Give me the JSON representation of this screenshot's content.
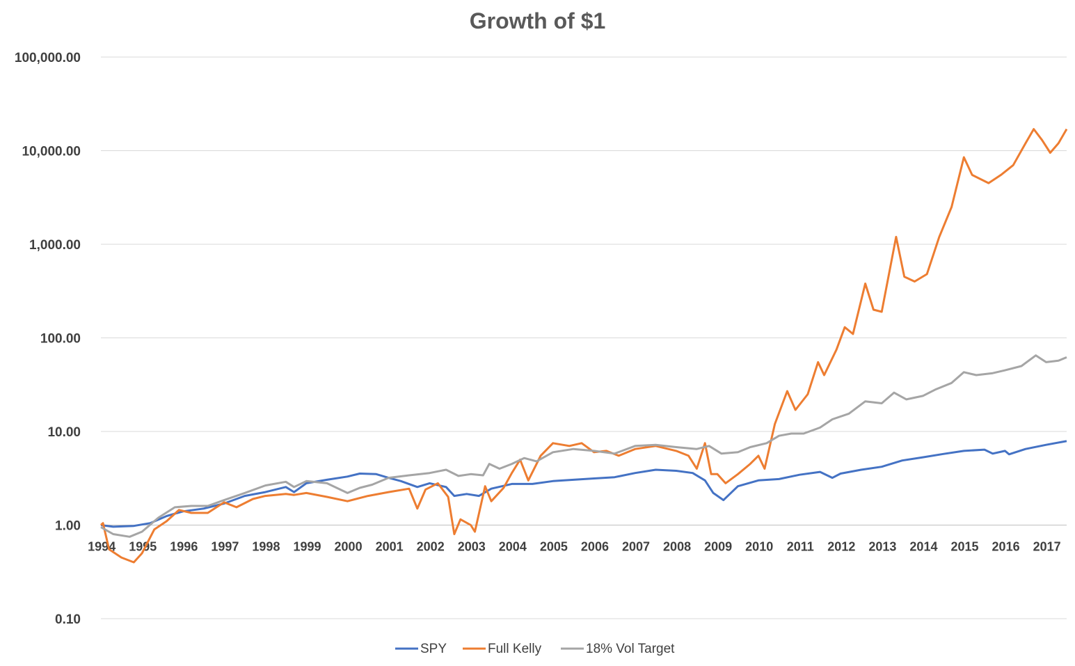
{
  "chart_data": {
    "type": "line",
    "title": "Growth of $1",
    "xlabel": "",
    "ylabel": "",
    "y_scale": "log",
    "ylim": [
      0.1,
      100000
    ],
    "xlim": [
      1994,
      2017.5
    ],
    "y_ticks": [
      {
        "value": 100000,
        "label": "100,000.00"
      },
      {
        "value": 10000,
        "label": "10,000.00"
      },
      {
        "value": 1000,
        "label": "1,000.00"
      },
      {
        "value": 100,
        "label": "100.00"
      },
      {
        "value": 10,
        "label": "10.00"
      },
      {
        "value": 1,
        "label": "1.00"
      },
      {
        "value": 0.1,
        "label": "0.10"
      }
    ],
    "x_ticks": [
      "1994",
      "1995",
      "1996",
      "1997",
      "1998",
      "1999",
      "2000",
      "2001",
      "2002",
      "2003",
      "2004",
      "2005",
      "2006",
      "2007",
      "2008",
      "2009",
      "2010",
      "2011",
      "2012",
      "2013",
      "2014",
      "2015",
      "2016",
      "2017"
    ],
    "grid": true,
    "legend_position": "bottom",
    "series": [
      {
        "name": "SPY",
        "color": "#4472C4",
        "points": [
          [
            1994.0,
            1.0
          ],
          [
            1994.3,
            0.96
          ],
          [
            1994.8,
            0.98
          ],
          [
            1995.2,
            1.05
          ],
          [
            1995.6,
            1.25
          ],
          [
            1996.0,
            1.4
          ],
          [
            1996.5,
            1.5
          ],
          [
            1997.0,
            1.7
          ],
          [
            1997.5,
            2.05
          ],
          [
            1998.0,
            2.25
          ],
          [
            1998.5,
            2.55
          ],
          [
            1998.7,
            2.25
          ],
          [
            1999.0,
            2.8
          ],
          [
            1999.5,
            3.05
          ],
          [
            2000.0,
            3.3
          ],
          [
            2000.3,
            3.55
          ],
          [
            2000.7,
            3.5
          ],
          [
            2001.0,
            3.2
          ],
          [
            2001.3,
            2.95
          ],
          [
            2001.7,
            2.55
          ],
          [
            2002.0,
            2.8
          ],
          [
            2002.4,
            2.55
          ],
          [
            2002.6,
            2.05
          ],
          [
            2002.9,
            2.15
          ],
          [
            2003.2,
            2.05
          ],
          [
            2003.5,
            2.45
          ],
          [
            2004.0,
            2.75
          ],
          [
            2004.5,
            2.75
          ],
          [
            2005.0,
            2.95
          ],
          [
            2005.5,
            3.05
          ],
          [
            2006.0,
            3.15
          ],
          [
            2006.5,
            3.25
          ],
          [
            2007.0,
            3.6
          ],
          [
            2007.5,
            3.9
          ],
          [
            2008.0,
            3.8
          ],
          [
            2008.4,
            3.6
          ],
          [
            2008.7,
            3.0
          ],
          [
            2008.9,
            2.2
          ],
          [
            2009.15,
            1.85
          ],
          [
            2009.5,
            2.6
          ],
          [
            2010.0,
            3.0
          ],
          [
            2010.5,
            3.1
          ],
          [
            2011.0,
            3.45
          ],
          [
            2011.5,
            3.7
          ],
          [
            2011.8,
            3.2
          ],
          [
            2012.0,
            3.55
          ],
          [
            2012.5,
            3.9
          ],
          [
            2013.0,
            4.2
          ],
          [
            2013.5,
            4.9
          ],
          [
            2014.0,
            5.3
          ],
          [
            2014.5,
            5.75
          ],
          [
            2015.0,
            6.2
          ],
          [
            2015.5,
            6.4
          ],
          [
            2015.7,
            5.8
          ],
          [
            2016.0,
            6.2
          ],
          [
            2016.1,
            5.7
          ],
          [
            2016.5,
            6.5
          ],
          [
            2017.0,
            7.2
          ],
          [
            2017.5,
            7.9
          ]
        ]
      },
      {
        "name": "Full Kelly",
        "color": "#ED7D31",
        "points": [
          [
            1994.0,
            1.0
          ],
          [
            1994.05,
            1.05
          ],
          [
            1994.2,
            0.55
          ],
          [
            1994.5,
            0.45
          ],
          [
            1994.8,
            0.4
          ],
          [
            1995.0,
            0.5
          ],
          [
            1995.3,
            0.9
          ],
          [
            1995.6,
            1.1
          ],
          [
            1995.9,
            1.45
          ],
          [
            1996.2,
            1.35
          ],
          [
            1996.6,
            1.35
          ],
          [
            1997.0,
            1.75
          ],
          [
            1997.3,
            1.55
          ],
          [
            1997.7,
            1.9
          ],
          [
            1998.0,
            2.05
          ],
          [
            1998.5,
            2.15
          ],
          [
            1998.7,
            2.1
          ],
          [
            1999.0,
            2.2
          ],
          [
            1999.5,
            2.0
          ],
          [
            2000.0,
            1.8
          ],
          [
            2000.5,
            2.05
          ],
          [
            2001.0,
            2.25
          ],
          [
            2001.5,
            2.45
          ],
          [
            2001.7,
            1.5
          ],
          [
            2001.9,
            2.4
          ],
          [
            2002.2,
            2.8
          ],
          [
            2002.45,
            2.0
          ],
          [
            2002.6,
            0.8
          ],
          [
            2002.75,
            1.15
          ],
          [
            2003.0,
            1.0
          ],
          [
            2003.1,
            0.85
          ],
          [
            2003.35,
            2.6
          ],
          [
            2003.5,
            1.8
          ],
          [
            2003.8,
            2.5
          ],
          [
            2004.0,
            3.6
          ],
          [
            2004.2,
            5.0
          ],
          [
            2004.4,
            3.0
          ],
          [
            2004.7,
            5.5
          ],
          [
            2005.0,
            7.5
          ],
          [
            2005.4,
            7.0
          ],
          [
            2005.7,
            7.5
          ],
          [
            2006.0,
            6.0
          ],
          [
            2006.3,
            6.2
          ],
          [
            2006.6,
            5.5
          ],
          [
            2007.0,
            6.5
          ],
          [
            2007.5,
            7.0
          ],
          [
            2008.0,
            6.2
          ],
          [
            2008.3,
            5.5
          ],
          [
            2008.5,
            4.0
          ],
          [
            2008.7,
            7.5
          ],
          [
            2008.85,
            3.5
          ],
          [
            2009.0,
            3.5
          ],
          [
            2009.2,
            2.8
          ],
          [
            2009.5,
            3.5
          ],
          [
            2009.8,
            4.5
          ],
          [
            2010.0,
            5.5
          ],
          [
            2010.15,
            4.0
          ],
          [
            2010.4,
            12.0
          ],
          [
            2010.7,
            27.0
          ],
          [
            2010.9,
            17.0
          ],
          [
            2011.2,
            25.0
          ],
          [
            2011.45,
            55.0
          ],
          [
            2011.6,
            40.0
          ],
          [
            2011.9,
            75.0
          ],
          [
            2012.1,
            130.0
          ],
          [
            2012.3,
            110.0
          ],
          [
            2012.6,
            380.0
          ],
          [
            2012.8,
            200.0
          ],
          [
            2013.0,
            190.0
          ],
          [
            2013.35,
            1200.0
          ],
          [
            2013.55,
            450.0
          ],
          [
            2013.8,
            400.0
          ],
          [
            2014.1,
            480.0
          ],
          [
            2014.4,
            1200.0
          ],
          [
            2014.7,
            2500.0
          ],
          [
            2015.0,
            8500.0
          ],
          [
            2015.2,
            5500.0
          ],
          [
            2015.6,
            4500.0
          ],
          [
            2015.9,
            5500.0
          ],
          [
            2016.2,
            7000.0
          ],
          [
            2016.5,
            12000.0
          ],
          [
            2016.7,
            17000.0
          ],
          [
            2016.9,
            13000.0
          ],
          [
            2017.1,
            9500.0
          ],
          [
            2017.3,
            12000.0
          ],
          [
            2017.5,
            17000.0
          ]
        ]
      },
      {
        "name": "18% Vol Target",
        "color": "#A5A5A5",
        "points": [
          [
            1994.0,
            0.95
          ],
          [
            1994.3,
            0.8
          ],
          [
            1994.7,
            0.75
          ],
          [
            1995.0,
            0.85
          ],
          [
            1995.4,
            1.2
          ],
          [
            1995.8,
            1.55
          ],
          [
            1996.2,
            1.6
          ],
          [
            1996.6,
            1.6
          ],
          [
            1997.0,
            1.85
          ],
          [
            1997.5,
            2.2
          ],
          [
            1998.0,
            2.65
          ],
          [
            1998.5,
            2.9
          ],
          [
            1998.7,
            2.55
          ],
          [
            1999.0,
            2.95
          ],
          [
            1999.5,
            2.8
          ],
          [
            2000.0,
            2.2
          ],
          [
            2000.3,
            2.5
          ],
          [
            2000.6,
            2.7
          ],
          [
            2001.0,
            3.2
          ],
          [
            2001.5,
            3.4
          ],
          [
            2002.0,
            3.6
          ],
          [
            2002.4,
            3.9
          ],
          [
            2002.7,
            3.35
          ],
          [
            2003.0,
            3.5
          ],
          [
            2003.3,
            3.4
          ],
          [
            2003.45,
            4.5
          ],
          [
            2003.7,
            4.0
          ],
          [
            2004.0,
            4.5
          ],
          [
            2004.3,
            5.2
          ],
          [
            2004.6,
            4.8
          ],
          [
            2005.0,
            6.0
          ],
          [
            2005.5,
            6.5
          ],
          [
            2006.0,
            6.2
          ],
          [
            2006.5,
            5.8
          ],
          [
            2007.0,
            7.0
          ],
          [
            2007.5,
            7.2
          ],
          [
            2008.0,
            6.8
          ],
          [
            2008.5,
            6.5
          ],
          [
            2008.8,
            7.0
          ],
          [
            2009.1,
            5.8
          ],
          [
            2009.5,
            6.0
          ],
          [
            2009.8,
            6.8
          ],
          [
            2010.2,
            7.5
          ],
          [
            2010.5,
            9.0
          ],
          [
            2010.8,
            9.5
          ],
          [
            2011.1,
            9.5
          ],
          [
            2011.5,
            11.0
          ],
          [
            2011.8,
            13.5
          ],
          [
            2012.2,
            15.5
          ],
          [
            2012.6,
            21.0
          ],
          [
            2013.0,
            20.0
          ],
          [
            2013.3,
            26.0
          ],
          [
            2013.6,
            22.0
          ],
          [
            2014.0,
            24.0
          ],
          [
            2014.3,
            28.0
          ],
          [
            2014.7,
            33.0
          ],
          [
            2015.0,
            43.0
          ],
          [
            2015.3,
            40.0
          ],
          [
            2015.7,
            42.0
          ],
          [
            2016.0,
            45.0
          ],
          [
            2016.4,
            50.0
          ],
          [
            2016.75,
            65.0
          ],
          [
            2017.0,
            55.0
          ],
          [
            2017.3,
            57.0
          ],
          [
            2017.5,
            62.0
          ]
        ]
      }
    ]
  }
}
